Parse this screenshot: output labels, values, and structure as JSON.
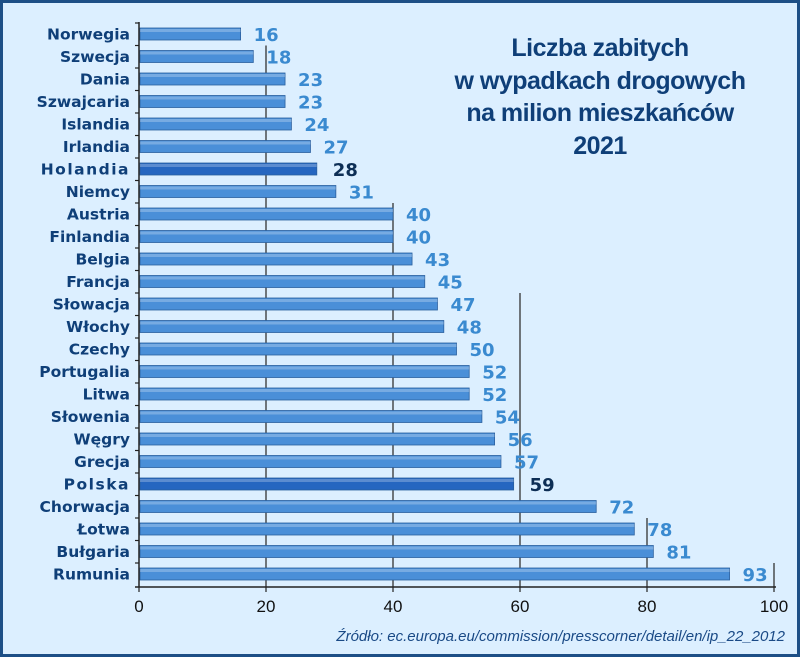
{
  "chart_data": {
    "type": "bar",
    "orientation": "horizontal",
    "title": [
      "Liczba zabitych",
      "w wypadkach drogowych",
      "na milion mieszkańców",
      "2021"
    ],
    "categories": [
      "Norwegia",
      "Szwecja",
      "Dania",
      "Szwajcaria",
      "Islandia",
      "Irlandia",
      "Holandia",
      "Niemcy",
      "Austria",
      "Finlandia",
      "Belgia",
      "Francja",
      "Słowacja",
      "Włochy",
      "Czechy",
      "Portugalia",
      "Litwa",
      "Słowenia",
      "Węgry",
      "Grecja",
      "Polska",
      "Chorwacja",
      "Łotwa",
      "Bułgaria",
      "Rumunia"
    ],
    "values": [
      16,
      18,
      23,
      23,
      24,
      27,
      28,
      31,
      40,
      40,
      43,
      45,
      47,
      48,
      50,
      52,
      52,
      54,
      56,
      57,
      59,
      72,
      78,
      81,
      93
    ],
    "highlighted": [
      "Holandia",
      "Polska"
    ],
    "xlim": [
      0,
      100
    ],
    "xticks": [
      "0",
      "20",
      "40",
      "60",
      "80",
      "100"
    ],
    "xlabel": "",
    "ylabel": "",
    "grid": "vertical",
    "source": "Źródło: ec.europa.eu/commission/presscorner/detail/en/ip_22_2012",
    "colors": {
      "bar": "#4a8fd8",
      "bar_highlight": "#2566c0",
      "value": "#3a8ad0",
      "value_highlight": "#0d2e55",
      "text": "#0f3f78",
      "background": "#dcefff",
      "border": "#1d4f86"
    }
  }
}
